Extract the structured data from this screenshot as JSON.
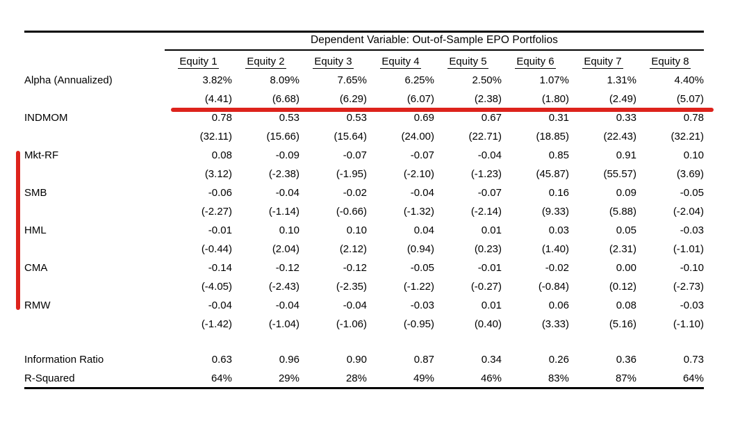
{
  "table": {
    "title": "Dependent Variable: Out-of-Sample EPO Portfolios",
    "columns": [
      "Equity 1",
      "Equity 2",
      "Equity 3",
      "Equity 4",
      "Equity 5",
      "Equity 6",
      "Equity 7",
      "Equity 8"
    ],
    "coefficient_rows": [
      {
        "label": "Alpha (Annualized)",
        "values": [
          "3.82%",
          "8.09%",
          "7.65%",
          "6.25%",
          "2.50%",
          "1.07%",
          "1.31%",
          "4.40%"
        ],
        "tstats": [
          "(4.41)",
          "(6.68)",
          "(6.29)",
          "(6.07)",
          "(2.38)",
          "(1.80)",
          "(2.49)",
          "(5.07)"
        ]
      },
      {
        "label": "INDMOM",
        "values": [
          "0.78",
          "0.53",
          "0.53",
          "0.69",
          "0.67",
          "0.31",
          "0.33",
          "0.78"
        ],
        "tstats": [
          "(32.11)",
          "(15.66)",
          "(15.64)",
          "(24.00)",
          "(22.71)",
          "(18.85)",
          "(22.43)",
          "(32.21)"
        ]
      },
      {
        "label": "Mkt-RF",
        "values": [
          "0.08",
          "-0.09",
          "-0.07",
          "-0.07",
          "-0.04",
          "0.85",
          "0.91",
          "0.10"
        ],
        "tstats": [
          "(3.12)",
          "(-2.38)",
          "(-1.95)",
          "(-2.10)",
          "(-1.23)",
          "(45.87)",
          "(55.57)",
          "(3.69)"
        ]
      },
      {
        "label": "SMB",
        "values": [
          "-0.06",
          "-0.04",
          "-0.02",
          "-0.04",
          "-0.07",
          "0.16",
          "0.09",
          "-0.05"
        ],
        "tstats": [
          "(-2.27)",
          "(-1.14)",
          "(-0.66)",
          "(-1.32)",
          "(-2.14)",
          "(9.33)",
          "(5.88)",
          "(-2.04)"
        ]
      },
      {
        "label": "HML",
        "values": [
          "-0.01",
          "0.10",
          "0.10",
          "0.04",
          "0.01",
          "0.03",
          "0.05",
          "-0.03"
        ],
        "tstats": [
          "(-0.44)",
          "(2.04)",
          "(2.12)",
          "(0.94)",
          "(0.23)",
          "(1.40)",
          "(2.31)",
          "(-1.01)"
        ]
      },
      {
        "label": "CMA",
        "values": [
          "-0.14",
          "-0.12",
          "-0.12",
          "-0.05",
          "-0.01",
          "-0.02",
          "0.00",
          "-0.10"
        ],
        "tstats": [
          "(-4.05)",
          "(-2.43)",
          "(-2.35)",
          "(-1.22)",
          "(-0.27)",
          "(-0.84)",
          "(0.12)",
          "(-2.73)"
        ]
      },
      {
        "label": "RMW",
        "values": [
          "-0.04",
          "-0.04",
          "-0.04",
          "-0.03",
          "0.01",
          "0.06",
          "0.08",
          "-0.03"
        ],
        "tstats": [
          "(-1.42)",
          "(-1.04)",
          "(-1.06)",
          "(-0.95)",
          "(0.40)",
          "(3.33)",
          "(5.16)",
          "(-1.10)"
        ]
      }
    ],
    "summary_rows": [
      {
        "label": "Information Ratio",
        "values": [
          "0.63",
          "0.96",
          "0.90",
          "0.87",
          "0.34",
          "0.26",
          "0.36",
          "0.73"
        ]
      },
      {
        "label": "R-Squared",
        "values": [
          "64%",
          "29%",
          "28%",
          "49%",
          "46%",
          "83%",
          "87%",
          "64%"
        ]
      }
    ]
  },
  "annotations": {
    "red_color": "#dd231c"
  }
}
